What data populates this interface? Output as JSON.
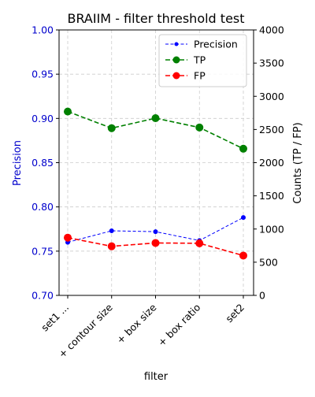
{
  "chart_data": {
    "type": "line",
    "title": "BRAIIM - filter threshold test",
    "xlabel": "filter",
    "ylabel_left": "Precision",
    "ylabel_right": "Counts (TP / FP)",
    "categories": [
      "set1 ...",
      "+ contour size",
      "+ box size",
      "+ box ratio",
      "set2"
    ],
    "y_left": {
      "lim": [
        0.7,
        1.0
      ],
      "ticks": [
        "0.70",
        "0.75",
        "0.80",
        "0.85",
        "0.90",
        "0.95",
        "1.00"
      ]
    },
    "y_right": {
      "lim": [
        0,
        4000
      ],
      "ticks": [
        "0",
        "500",
        "1000",
        "1500",
        "2000",
        "2500",
        "3000",
        "3500",
        "4000"
      ]
    },
    "grid": true,
    "legend_position": "top-right",
    "series": [
      {
        "name": "Precision",
        "axis": "left",
        "color": "#0000ff",
        "values": [
          0.76,
          0.773,
          0.772,
          0.762,
          0.788
        ]
      },
      {
        "name": "TP",
        "axis": "right",
        "color": "#008000",
        "values": [
          2770,
          2520,
          2670,
          2530,
          2210
        ]
      },
      {
        "name": "FP",
        "axis": "right",
        "color": "#ff0000",
        "values": [
          870,
          740,
          790,
          785,
          600
        ]
      }
    ]
  }
}
